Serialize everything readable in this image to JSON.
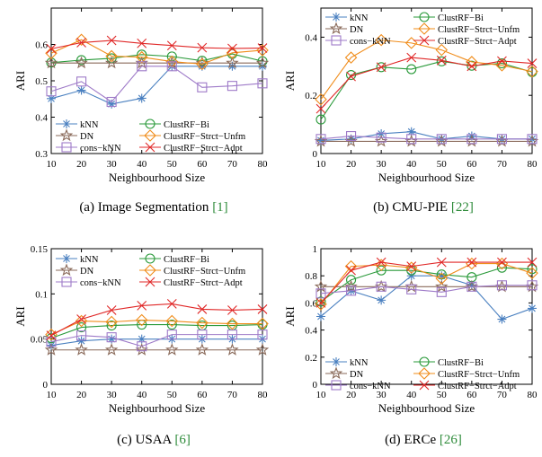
{
  "chart_data": [
    {
      "type": "line",
      "caption": {
        "label": "(a)",
        "text": "Image Segmentation",
        "cite": "[1]"
      },
      "xlabel": "Neighbourhood Size",
      "ylabel": "ARI",
      "x": [
        10,
        20,
        30,
        40,
        50,
        60,
        70,
        80
      ],
      "xlim": [
        10,
        80
      ],
      "ylim": [
        0.3,
        0.7
      ],
      "yticks": [
        "0.3",
        "0.4",
        "0.5",
        "0.6"
      ],
      "xticks": [
        "10",
        "20",
        "30",
        "40",
        "50",
        "60",
        "70",
        "80"
      ],
      "legend": "bottom-left",
      "series": [
        {
          "name": "kNN",
          "values": [
            0.451,
            0.474,
            0.436,
            0.452,
            0.54,
            0.54,
            0.54,
            0.54
          ]
        },
        {
          "name": "ClustRF−Bi",
          "values": [
            0.55,
            0.557,
            0.562,
            0.572,
            0.567,
            0.555,
            0.574,
            0.554
          ]
        },
        {
          "name": "DN",
          "values": [
            0.549,
            0.549,
            0.549,
            0.549,
            0.549,
            0.549,
            0.549,
            0.549
          ]
        },
        {
          "name": "ClustRF−Strct−Unfm",
          "values": [
            0.576,
            0.613,
            0.568,
            0.565,
            0.553,
            0.546,
            0.577,
            0.584
          ]
        },
        {
          "name": "cons−kNN",
          "values": [
            0.471,
            0.498,
            0.442,
            0.54,
            0.54,
            0.482,
            0.486,
            0.493
          ]
        },
        {
          "name": "ClustRF−Strct−Adpt",
          "values": [
            0.588,
            0.605,
            0.611,
            0.603,
            0.597,
            0.591,
            0.589,
            0.59
          ]
        }
      ]
    },
    {
      "type": "line",
      "caption": {
        "label": "(b)",
        "text": "CMU-PIE",
        "cite": "[22]"
      },
      "xlabel": "Neighbourhood Size",
      "ylabel": "ARI",
      "x": [
        10,
        20,
        30,
        40,
        50,
        60,
        70,
        80
      ],
      "xlim": [
        10,
        80
      ],
      "ylim": [
        0,
        0.5
      ],
      "yticks": [
        "0",
        "0.2",
        "0.4"
      ],
      "xticks": [
        "10",
        "20",
        "30",
        "40",
        "50",
        "60",
        "70",
        "80"
      ],
      "legend": "top-left",
      "series": [
        {
          "name": "kNN",
          "values": [
            0.045,
            0.05,
            0.068,
            0.075,
            0.05,
            0.06,
            0.05,
            0.05
          ]
        },
        {
          "name": "ClustRF−Bi",
          "values": [
            0.117,
            0.27,
            0.297,
            0.29,
            0.317,
            0.302,
            0.31,
            0.28
          ]
        },
        {
          "name": "DN",
          "values": [
            0.042,
            0.042,
            0.042,
            0.042,
            0.042,
            0.042,
            0.042,
            0.042
          ]
        },
        {
          "name": "ClustRF−Strct−Unfm",
          "values": [
            0.186,
            0.33,
            0.39,
            0.38,
            0.356,
            0.315,
            0.303,
            0.282
          ]
        },
        {
          "name": "cons−kNN",
          "values": [
            0.05,
            0.06,
            0.055,
            0.05,
            0.05,
            0.05,
            0.05,
            0.05
          ]
        },
        {
          "name": "ClustRF−Strct−Adpt",
          "values": [
            0.154,
            0.265,
            0.297,
            0.33,
            0.32,
            0.3,
            0.318,
            0.31
          ]
        }
      ]
    },
    {
      "type": "line",
      "caption": {
        "label": "(c)",
        "text": "USAA",
        "cite": "[6]"
      },
      "xlabel": "Neighbourhood Size",
      "ylabel": "ARI",
      "x": [
        10,
        20,
        30,
        40,
        50,
        60,
        70,
        80
      ],
      "xlim": [
        10,
        80
      ],
      "ylim": [
        0,
        0.15
      ],
      "yticks": [
        "0",
        "0.05",
        "0.1",
        "0.15"
      ],
      "xticks": [
        "10",
        "20",
        "30",
        "40",
        "50",
        "60",
        "70",
        "80"
      ],
      "legend": "top-left",
      "series": [
        {
          "name": "kNN",
          "values": [
            0.043,
            0.048,
            0.05,
            0.05,
            0.05,
            0.05,
            0.05,
            0.05
          ]
        },
        {
          "name": "ClustRF−Bi",
          "values": [
            0.051,
            0.063,
            0.065,
            0.066,
            0.066,
            0.065,
            0.065,
            0.066
          ]
        },
        {
          "name": "DN",
          "values": [
            0.038,
            0.038,
            0.038,
            0.038,
            0.038,
            0.038,
            0.038,
            0.038
          ]
        },
        {
          "name": "ClustRF−Strct−Unfm",
          "values": [
            0.055,
            0.07,
            0.069,
            0.071,
            0.07,
            0.068,
            0.067,
            0.067
          ]
        },
        {
          "name": "cons−kNN",
          "values": [
            0.047,
            0.054,
            0.052,
            0.042,
            0.055,
            0.055,
            0.055,
            0.055
          ]
        },
        {
          "name": "ClustRF−Strct−Adpt",
          "values": [
            0.054,
            0.072,
            0.082,
            0.087,
            0.089,
            0.083,
            0.082,
            0.083
          ]
        }
      ]
    },
    {
      "type": "line",
      "caption": {
        "label": "(d)",
        "text": "ERCe",
        "cite": "[26]"
      },
      "xlabel": "Neighbourhood Size",
      "ylabel": "ARI",
      "x": [
        10,
        20,
        30,
        40,
        50,
        60,
        70,
        80
      ],
      "xlim": [
        10,
        80
      ],
      "ylim": [
        0,
        1
      ],
      "yticks": [
        "0",
        "0.2",
        "0.4",
        "0.6",
        "0.8",
        "1"
      ],
      "xticks": [
        "10",
        "20",
        "30",
        "40",
        "50",
        "60",
        "70",
        "80"
      ],
      "legend": "bottom",
      "series": [
        {
          "name": "kNN",
          "values": [
            0.5,
            0.69,
            0.62,
            0.8,
            0.8,
            0.73,
            0.48,
            0.56
          ]
        },
        {
          "name": "ClustRF−Bi",
          "values": [
            0.61,
            0.77,
            0.84,
            0.84,
            0.81,
            0.79,
            0.86,
            0.85
          ]
        },
        {
          "name": "DN",
          "values": [
            0.72,
            0.72,
            0.72,
            0.72,
            0.72,
            0.72,
            0.72,
            0.72
          ]
        },
        {
          "name": "ClustRF−Strct−Unfm",
          "values": [
            0.59,
            0.87,
            0.88,
            0.86,
            0.78,
            0.89,
            0.89,
            0.82
          ]
        },
        {
          "name": "cons−kNN",
          "values": [
            0.67,
            0.69,
            0.72,
            0.7,
            0.68,
            0.72,
            0.73,
            0.73
          ]
        },
        {
          "name": "ClustRF−Strct−Adpt",
          "values": [
            0.6,
            0.84,
            0.9,
            0.87,
            0.9,
            0.9,
            0.9,
            0.9
          ]
        }
      ]
    }
  ],
  "colors": {
    "kNN": "#4a80c0",
    "ClustRF−Bi": "#2a9a3a",
    "DN": "#8a6a5a",
    "ClustRF−Strct−Unfm": "#f08c1a",
    "cons−kNN": "#9e7ac8",
    "ClustRF−Strct−Adpt": "#e02828"
  },
  "markers": {
    "kNN": "asterisk-icon",
    "ClustRF−Bi": "circle-icon",
    "DN": "star-icon",
    "ClustRF−Strct−Unfm": "diamond-icon",
    "cons−kNN": "square-icon",
    "ClustRF−Strct−Adpt": "cross-icon"
  }
}
